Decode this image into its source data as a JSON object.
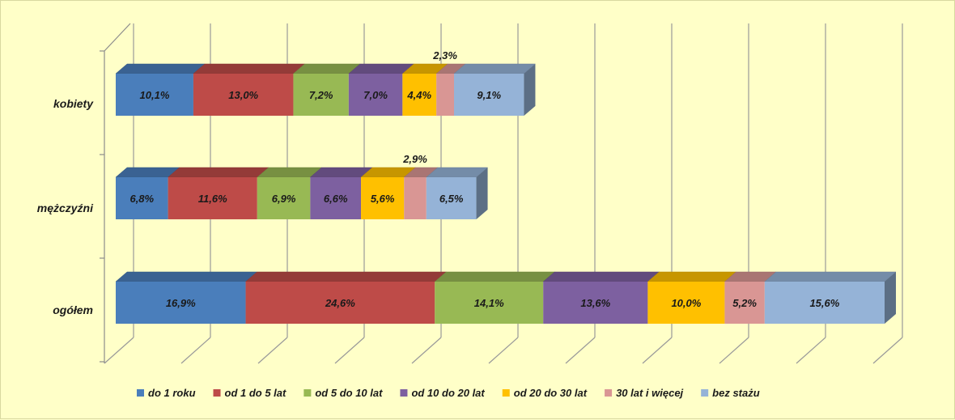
{
  "chart_data": {
    "type": "bar",
    "orientation": "horizontal",
    "stacked": true,
    "three_d": true,
    "categories": [
      "kobiety",
      "mężczyźni",
      "ogółem"
    ],
    "series": [
      {
        "name": "do 1 roku",
        "color": "#4a7ebb",
        "values": [
          10.1,
          6.8,
          16.9
        ],
        "labels": [
          "10,1%",
          "6,8%",
          "16,9%"
        ]
      },
      {
        "name": "od 1 do 5 lat",
        "color": "#be4b48",
        "values": [
          13.0,
          11.6,
          24.6
        ],
        "labels": [
          "13,0%",
          "11,6%",
          "24,6%"
        ]
      },
      {
        "name": "od 5 do 10 lat",
        "color": "#98b954",
        "values": [
          7.2,
          6.9,
          14.1
        ],
        "labels": [
          "7,2%",
          "6,9%",
          "14,1%"
        ]
      },
      {
        "name": "od 10 do 20 lat",
        "color": "#7d60a0",
        "values": [
          7.0,
          6.6,
          13.6
        ],
        "labels": [
          "7,0%",
          "6,6%",
          "13,6%"
        ]
      },
      {
        "name": "od 20 do 30 lat",
        "color": "#ffc000",
        "values": [
          4.4,
          5.6,
          10.0
        ],
        "labels": [
          "4,4%",
          "5,6%",
          "10,0%"
        ]
      },
      {
        "name": "30 lat i więcej",
        "color": "#d99694",
        "values": [
          2.3,
          2.9,
          5.2
        ],
        "labels": [
          "2,3%",
          "2,9%",
          "5,2%"
        ]
      },
      {
        "name": "bez stażu",
        "color": "#95b3d7",
        "values": [
          9.1,
          6.5,
          15.6
        ],
        "labels": [
          "9,1%",
          "6,5%",
          "15,6%"
        ]
      }
    ],
    "xlim": [
      0,
      105
    ],
    "grid": true,
    "legend_position": "bottom"
  }
}
